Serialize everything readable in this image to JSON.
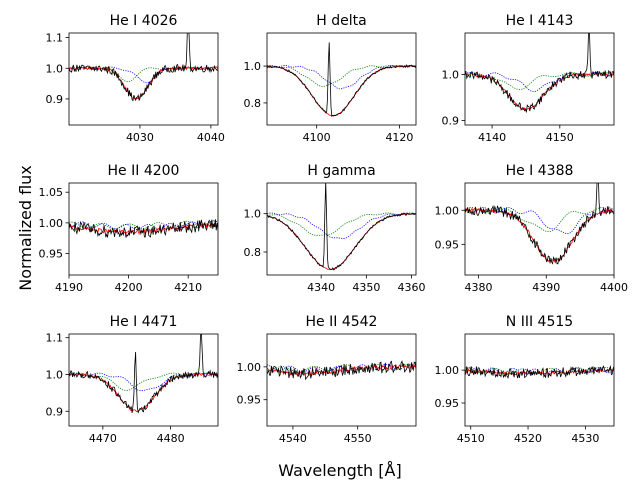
{
  "figure": {
    "xlabel": "Wavelength [Å]",
    "ylabel": "Normalized flux"
  },
  "colors": {
    "observed": "#000000",
    "model": "#ff0000",
    "comp1": "#0000ff",
    "comp2": "#008000"
  },
  "chart_data": [
    {
      "type": "line",
      "title": "He I 4026",
      "center": 4029.5,
      "width": 1.6,
      "depth": 0.1,
      "xlim": [
        4020,
        4041
      ],
      "ylim": [
        0.815,
        1.115
      ],
      "xticks": [
        4030,
        4040
      ],
      "yticks": [
        0.9,
        1.0,
        1.1
      ],
      "ytick_labels": [
        "0.9",
        "1.0",
        "1.1"
      ],
      "emission": [
        {
          "x": 4036.8,
          "h": 0.17
        }
      ],
      "noise": 0.025,
      "series": [
        {
          "name": "observed"
        },
        {
          "name": "model"
        },
        {
          "name": "component 1"
        },
        {
          "name": "component 2"
        }
      ]
    },
    {
      "type": "line",
      "title": "H delta",
      "center": 4104,
      "width": 5,
      "depth": 0.27,
      "xlim": [
        4088,
        4124
      ],
      "ylim": [
        0.68,
        1.18
      ],
      "xticks": [
        4100,
        4120
      ],
      "yticks": [
        0.8,
        1.0
      ],
      "ytick_labels": [
        "0.8",
        "1.0"
      ],
      "emission": [
        {
          "x": 4103,
          "h": 0.4
        }
      ],
      "noise": 0.012,
      "series": [
        {
          "name": "observed"
        },
        {
          "name": "model"
        },
        {
          "name": "component 1"
        },
        {
          "name": "component 2"
        }
      ]
    },
    {
      "type": "line",
      "title": "He I 4143",
      "center": 4145,
      "width": 2.6,
      "depth": 0.075,
      "xlim": [
        4136,
        4158
      ],
      "ylim": [
        0.89,
        1.09
      ],
      "xticks": [
        4140,
        4150
      ],
      "yticks": [
        0.9,
        1.0
      ],
      "ytick_labels": [
        "0.9",
        "1.0"
      ],
      "emission": [
        {
          "x": 4154.3,
          "h": 0.1
        }
      ],
      "noise": 0.018,
      "series": [
        {
          "name": "observed"
        },
        {
          "name": "model"
        },
        {
          "name": "component 1"
        },
        {
          "name": "component 2"
        }
      ]
    },
    {
      "type": "line",
      "title": "He II 4200",
      "center": 4200,
      "width": 8,
      "depth": 0.015,
      "xlim": [
        4190,
        4215
      ],
      "ylim": [
        0.915,
        1.065
      ],
      "xticks": [
        4190,
        4200,
        4210
      ],
      "yticks": [
        0.95,
        1.0,
        1.05
      ],
      "ytick_labels": [
        "0.95",
        "1.00",
        "1.05"
      ],
      "emission": [],
      "noise": 0.02,
      "series": [
        {
          "name": "observed"
        },
        {
          "name": "model"
        },
        {
          "name": "component 1"
        },
        {
          "name": "component 2"
        }
      ]
    },
    {
      "type": "line",
      "title": "H gamma",
      "center": 4342,
      "width": 5.5,
      "depth": 0.29,
      "xlim": [
        4328,
        4361
      ],
      "ylim": [
        0.68,
        1.16
      ],
      "xticks": [
        4340,
        4350,
        4360
      ],
      "yticks": [
        0.8,
        1.0
      ],
      "ytick_labels": [
        "0.8",
        "1.0"
      ],
      "emission": [
        {
          "x": 4341,
          "h": 0.45
        }
      ],
      "noise": 0.012,
      "series": [
        {
          "name": "observed"
        },
        {
          "name": "model"
        },
        {
          "name": "component 1"
        },
        {
          "name": "component 2"
        }
      ]
    },
    {
      "type": "line",
      "title": "He I 4388",
      "center": 4391,
      "width": 2.8,
      "depth": 0.075,
      "xlim": [
        4378,
        4400
      ],
      "ylim": [
        0.905,
        1.04
      ],
      "xticks": [
        4380,
        4390,
        4400
      ],
      "yticks": [
        0.95,
        1.0
      ],
      "ytick_labels": [
        "0.95",
        "1.00"
      ],
      "emission": [
        {
          "x": 4397.6,
          "h": 0.07
        }
      ],
      "noise": 0.015,
      "series": [
        {
          "name": "observed"
        },
        {
          "name": "model"
        },
        {
          "name": "component 1"
        },
        {
          "name": "component 2"
        }
      ]
    },
    {
      "type": "line",
      "title": "He I 4471",
      "center": 4475,
      "width": 2.6,
      "depth": 0.1,
      "xlim": [
        4465,
        4487
      ],
      "ylim": [
        0.86,
        1.11
      ],
      "xticks": [
        4470,
        4480
      ],
      "yticks": [
        0.9,
        1.0,
        1.1
      ],
      "ytick_labels": [
        "0.9",
        "1.0",
        "1.1"
      ],
      "emission": [
        {
          "x": 4474.8,
          "h": 0.17
        },
        {
          "x": 4484.5,
          "h": 0.13
        }
      ],
      "noise": 0.02,
      "series": [
        {
          "name": "observed"
        },
        {
          "name": "model"
        },
        {
          "name": "component 1"
        },
        {
          "name": "component 2"
        }
      ]
    },
    {
      "type": "line",
      "title": "He II 4542",
      "center": 4542,
      "width": 5,
      "depth": 0.01,
      "xlim": [
        4536,
        4559
      ],
      "ylim": [
        0.91,
        1.05
      ],
      "xticks": [
        4540,
        4550
      ],
      "yticks": [
        0.95,
        1.0
      ],
      "ytick_labels": [
        "0.95",
        "1.00"
      ],
      "emission": [],
      "noise": 0.018,
      "series": [
        {
          "name": "observed"
        },
        {
          "name": "model"
        },
        {
          "name": "component 1"
        },
        {
          "name": "component 2"
        }
      ]
    },
    {
      "type": "line",
      "title": "N III 4515",
      "center": 4520,
      "width": 6,
      "depth": 0.005,
      "xlim": [
        4509,
        4535
      ],
      "ylim": [
        0.915,
        1.055
      ],
      "xticks": [
        4510,
        4520,
        4530
      ],
      "yticks": [
        0.95,
        1.0
      ],
      "ytick_labels": [
        "0.95",
        "1.00"
      ],
      "emission": [],
      "noise": 0.015,
      "series": [
        {
          "name": "observed"
        },
        {
          "name": "model"
        },
        {
          "name": "component 1"
        },
        {
          "name": "component 2"
        }
      ]
    }
  ]
}
